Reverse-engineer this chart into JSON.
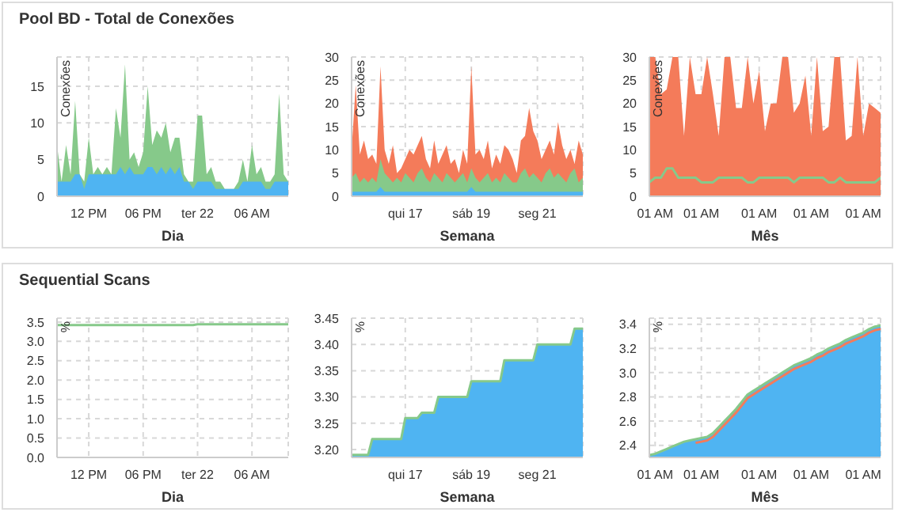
{
  "chart_data": [
    {
      "type": "area",
      "title": "Pool BD - Total de Conexões",
      "xlabel": "Dia",
      "ylabel": "Conexões",
      "grid": true,
      "ylim": [
        0,
        19
      ],
      "yticks": [
        0,
        5,
        10,
        15
      ],
      "categories": [
        null,
        null,
        null,
        null,
        null,
        null,
        null,
        "12 PM",
        null,
        null,
        null,
        null,
        null,
        null,
        null,
        null,
        null,
        null,
        null,
        "06 PM",
        null,
        null,
        null,
        null,
        null,
        null,
        null,
        null,
        null,
        null,
        null,
        "ter 22",
        null,
        null,
        null,
        null,
        null,
        null,
        null,
        null,
        null,
        null,
        null,
        "06 AM",
        null,
        null,
        null,
        null,
        null,
        null,
        null,
        null
      ],
      "series": [
        {
          "color": "#86c98a",
          "values": [
            7,
            2,
            7,
            3,
            13,
            3,
            2,
            8,
            3,
            4,
            3,
            4,
            3,
            12,
            8,
            18,
            5,
            6,
            4,
            6,
            15,
            7,
            9,
            8,
            10,
            6,
            8,
            8,
            3,
            2,
            2,
            11,
            11,
            3,
            4,
            2,
            2,
            1,
            1,
            1,
            2,
            5,
            2,
            7,
            3,
            4,
            2,
            2,
            3,
            14,
            3,
            2
          ]
        },
        {
          "color": "#4fb4f2",
          "values": [
            2,
            2,
            2,
            2,
            3,
            3,
            1,
            3,
            3,
            3,
            3,
            3,
            3,
            3,
            4,
            3,
            4,
            3,
            3,
            3,
            4,
            4,
            3,
            4,
            3,
            4,
            3,
            4,
            2,
            2,
            1,
            2,
            2,
            2,
            2,
            1,
            1,
            1,
            1,
            1,
            1,
            2,
            2,
            2,
            2,
            2,
            1,
            1,
            2,
            2,
            2,
            2
          ]
        }
      ]
    },
    {
      "type": "area",
      "xlabel": "Semana",
      "ylabel": "Conexões",
      "grid": true,
      "ylim": [
        0,
        30
      ],
      "yticks": [
        0,
        5,
        10,
        15,
        20,
        25,
        30
      ],
      "categories": [
        null,
        null,
        null,
        null,
        null,
        null,
        null,
        null,
        null,
        null,
        null,
        null,
        null,
        "qui 17",
        null,
        null,
        null,
        null,
        null,
        null,
        null,
        null,
        null,
        null,
        null,
        null,
        null,
        null,
        null,
        "sáb 19",
        null,
        null,
        null,
        null,
        null,
        null,
        null,
        null,
        null,
        null,
        null,
        null,
        null,
        null,
        null,
        "seg 21",
        null,
        null,
        null,
        null,
        null,
        null,
        null,
        null,
        null,
        null,
        null
      ],
      "series": [
        {
          "color": "#f47b5a",
          "values": [
            10,
            24,
            9,
            12,
            8,
            9,
            7,
            28,
            10,
            7,
            11,
            5,
            6,
            8,
            10,
            9,
            11,
            13,
            8,
            6,
            12,
            7,
            9,
            11,
            7,
            8,
            5,
            10,
            7,
            28,
            9,
            10,
            8,
            12,
            6,
            9,
            7,
            11,
            10,
            8,
            5,
            12,
            13,
            19,
            14,
            12,
            8,
            10,
            12,
            9,
            16,
            11,
            8,
            10,
            7,
            12,
            9
          ]
        },
        {
          "color": "#86c98a",
          "values": [
            4,
            5,
            3,
            4,
            3,
            4,
            3,
            8,
            5,
            4,
            3,
            4,
            3,
            5,
            4,
            3,
            5,
            6,
            4,
            3,
            5,
            4,
            3,
            5,
            4,
            3,
            4,
            5,
            3,
            6,
            4,
            3,
            4,
            5,
            3,
            4,
            3,
            5,
            4,
            3,
            3,
            5,
            6,
            4,
            5,
            4,
            3,
            5,
            6,
            4,
            5,
            4,
            3,
            5,
            6,
            3,
            4
          ]
        },
        {
          "color": "#4fb4f2",
          "values": [
            1,
            1,
            1,
            1,
            1,
            1,
            1,
            2,
            1,
            1,
            1,
            1,
            1,
            1,
            1,
            1,
            1,
            1,
            1,
            1,
            1,
            1,
            1,
            1,
            1,
            1,
            1,
            1,
            1,
            2,
            1,
            1,
            1,
            1,
            1,
            1,
            1,
            1,
            1,
            1,
            1,
            1,
            1,
            1,
            1,
            1,
            1,
            1,
            1,
            1,
            1,
            1,
            1,
            1,
            1,
            1,
            1
          ]
        }
      ]
    },
    {
      "type": "area",
      "xlabel": "Mês",
      "ylabel": "Conexões",
      "grid": true,
      "ylim": [
        0,
        30
      ],
      "yticks": [
        0,
        5,
        10,
        15,
        20,
        25,
        30
      ],
      "categories": [
        null,
        "01 AM",
        null,
        null,
        null,
        null,
        null,
        null,
        null,
        "01 AM",
        null,
        null,
        null,
        null,
        null,
        null,
        null,
        null,
        null,
        "01 AM",
        null,
        null,
        null,
        null,
        null,
        null,
        null,
        null,
        "01 AM",
        null,
        null,
        null,
        null,
        null,
        null,
        null,
        null,
        "01 AM",
        null,
        null,
        null
      ],
      "series": [
        {
          "color": "#f47b5a",
          "values": [
            30,
            30,
            22,
            23,
            30,
            30,
            13,
            30,
            22,
            22,
            30,
            22,
            13,
            30,
            30,
            19,
            19,
            30,
            20,
            27,
            14,
            20,
            20,
            30,
            30,
            18,
            20,
            26,
            13,
            30,
            14,
            15,
            30,
            30,
            12,
            13,
            30,
            13,
            20,
            19,
            18
          ]
        },
        {
          "type": "line",
          "color": "#86c98a",
          "values": [
            3,
            4,
            4,
            6,
            6,
            4,
            4,
            4,
            4,
            3,
            3,
            3,
            4,
            4,
            4,
            4,
            4,
            3,
            3,
            4,
            4,
            4,
            4,
            4,
            4,
            3,
            4,
            4,
            4,
            4,
            4,
            3,
            3,
            4,
            3,
            3,
            3,
            3,
            3,
            3,
            4
          ]
        }
      ]
    },
    {
      "type": "line",
      "title": "Sequential Scans",
      "xlabel": "Dia",
      "ylabel": "%",
      "grid": true,
      "ylim": [
        0,
        3.6
      ],
      "yticks": [
        {
          "value": 0,
          "label": "0.0"
        },
        0.5,
        {
          "value": 1,
          "label": "1.0"
        },
        1.5,
        {
          "value": 2,
          "label": "2.0"
        },
        2.5,
        {
          "value": 3,
          "label": "3.0"
        },
        3.5
      ],
      "categories": [
        null,
        null,
        null,
        null,
        null,
        null,
        null,
        "12 PM",
        null,
        null,
        null,
        null,
        null,
        null,
        null,
        null,
        null,
        null,
        null,
        "06 PM",
        null,
        null,
        null,
        null,
        null,
        null,
        null,
        null,
        null,
        null,
        null,
        "ter 22",
        null,
        null,
        null,
        null,
        null,
        null,
        null,
        null,
        null,
        null,
        null,
        "06 AM",
        null,
        null,
        null,
        null,
        null,
        null,
        null,
        null
      ],
      "series": [
        {
          "color": "#86c98a",
          "values": [
            3.42,
            3.42,
            3.42,
            3.42,
            3.42,
            3.42,
            3.42,
            3.42,
            3.42,
            3.42,
            3.42,
            3.42,
            3.42,
            3.42,
            3.42,
            3.42,
            3.42,
            3.42,
            3.42,
            3.42,
            3.42,
            3.42,
            3.42,
            3.42,
            3.42,
            3.42,
            3.42,
            3.42,
            3.42,
            3.42,
            3.42,
            3.44,
            3.44,
            3.44,
            3.44,
            3.44,
            3.44,
            3.44,
            3.44,
            3.44,
            3.44,
            3.44,
            3.44,
            3.44,
            3.44,
            3.44,
            3.44,
            3.44,
            3.44,
            3.44,
            3.44,
            3.44
          ]
        }
      ]
    },
    {
      "type": "area",
      "xlabel": "Semana",
      "ylabel": "%",
      "grid": true,
      "ylim": [
        3.185,
        3.45
      ],
      "yticks": [
        {
          "value": 3.2,
          "label": "3.20"
        },
        3.25,
        {
          "value": 3.3,
          "label": "3.30"
        },
        3.35,
        {
          "value": 3.4,
          "label": "3.40"
        },
        3.45
      ],
      "categories": [
        null,
        null,
        null,
        null,
        null,
        null,
        null,
        null,
        null,
        null,
        null,
        null,
        null,
        "qui 17",
        null,
        null,
        null,
        null,
        null,
        null,
        null,
        null,
        null,
        null,
        null,
        null,
        null,
        null,
        null,
        "sáb 19",
        null,
        null,
        null,
        null,
        null,
        null,
        null,
        null,
        null,
        null,
        null,
        null,
        null,
        null,
        null,
        "seg 21",
        null,
        null,
        null,
        null,
        null,
        null,
        null,
        null,
        null,
        null,
        null
      ],
      "series": [
        {
          "color": "#4fb4f2",
          "values": [
            3.19,
            3.19,
            3.19,
            3.19,
            3.19,
            3.22,
            3.22,
            3.22,
            3.22,
            3.22,
            3.22,
            3.22,
            3.22,
            3.26,
            3.26,
            3.26,
            3.26,
            3.27,
            3.27,
            3.27,
            3.27,
            3.3,
            3.3,
            3.3,
            3.3,
            3.3,
            3.3,
            3.3,
            3.3,
            3.33,
            3.33,
            3.33,
            3.33,
            3.33,
            3.33,
            3.33,
            3.33,
            3.37,
            3.37,
            3.37,
            3.37,
            3.37,
            3.37,
            3.37,
            3.37,
            3.4,
            3.4,
            3.4,
            3.4,
            3.4,
            3.4,
            3.4,
            3.4,
            3.4,
            3.43,
            3.43,
            3.43
          ]
        },
        {
          "type": "line",
          "color": "#86c98a",
          "values": [
            3.19,
            3.19,
            3.19,
            3.19,
            3.19,
            3.22,
            3.22,
            3.22,
            3.22,
            3.22,
            3.22,
            3.22,
            3.22,
            3.26,
            3.26,
            3.26,
            3.26,
            3.27,
            3.27,
            3.27,
            3.27,
            3.3,
            3.3,
            3.3,
            3.3,
            3.3,
            3.3,
            3.3,
            3.3,
            3.33,
            3.33,
            3.33,
            3.33,
            3.33,
            3.33,
            3.33,
            3.33,
            3.37,
            3.37,
            3.37,
            3.37,
            3.37,
            3.37,
            3.37,
            3.37,
            3.4,
            3.4,
            3.4,
            3.4,
            3.4,
            3.4,
            3.4,
            3.4,
            3.4,
            3.43,
            3.43,
            3.43
          ]
        }
      ]
    },
    {
      "type": "area",
      "xlabel": "Mês",
      "ylabel": "%",
      "grid": true,
      "ylim": [
        2.3,
        3.45
      ],
      "yticks": [
        2.4,
        2.6,
        2.8,
        {
          "value": 3,
          "label": "3.0"
        },
        3.2,
        3.4
      ],
      "categories": [
        null,
        "01 AM",
        null,
        null,
        null,
        null,
        null,
        null,
        null,
        "01 AM",
        null,
        null,
        null,
        null,
        null,
        null,
        null,
        null,
        null,
        "01 AM",
        null,
        null,
        null,
        null,
        null,
        null,
        null,
        null,
        "01 AM",
        null,
        null,
        null,
        null,
        null,
        null,
        null,
        null,
        "01 AM",
        null,
        null,
        null
      ],
      "series": [
        {
          "color": "#4fb4f2",
          "values": [
            2.32,
            2.33,
            2.35,
            2.37,
            2.39,
            2.41,
            2.43,
            2.44,
            2.45,
            2.46,
            2.47,
            2.5,
            2.55,
            2.6,
            2.65,
            2.7,
            2.76,
            2.82,
            2.85,
            2.88,
            2.91,
            2.94,
            2.97,
            3.0,
            3.03,
            3.06,
            3.08,
            3.1,
            3.12,
            3.15,
            3.17,
            3.2,
            3.22,
            3.24,
            3.27,
            3.29,
            3.31,
            3.33,
            3.36,
            3.38,
            3.39
          ]
        },
        {
          "type": "line",
          "color": "#f47b5a",
          "values": [
            null,
            null,
            null,
            null,
            null,
            null,
            null,
            null,
            2.42,
            2.43,
            2.44,
            2.47,
            2.52,
            2.57,
            2.62,
            2.67,
            2.73,
            2.79,
            2.82,
            2.85,
            2.88,
            2.91,
            2.94,
            2.97,
            3.0,
            3.03,
            3.05,
            3.07,
            3.09,
            3.12,
            3.14,
            3.17,
            3.19,
            3.21,
            3.24,
            3.26,
            3.28,
            3.3,
            3.33,
            3.35,
            3.36
          ]
        },
        {
          "type": "line",
          "color": "#86c98a",
          "values": [
            2.32,
            2.33,
            2.35,
            2.37,
            2.39,
            2.41,
            2.43,
            2.44,
            2.45,
            2.46,
            2.47,
            2.5,
            2.55,
            2.6,
            2.65,
            2.7,
            2.76,
            2.82,
            2.85,
            2.88,
            2.91,
            2.94,
            2.97,
            3.0,
            3.03,
            3.06,
            3.08,
            3.1,
            3.12,
            3.15,
            3.17,
            3.2,
            3.22,
            3.24,
            3.27,
            3.29,
            3.31,
            3.33,
            3.36,
            3.38,
            3.39
          ]
        }
      ]
    }
  ]
}
